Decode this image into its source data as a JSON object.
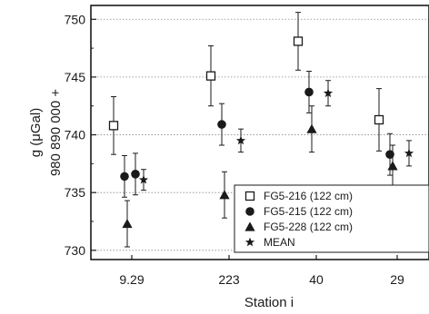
{
  "chart_data": {
    "type": "scatter",
    "title": "",
    "xlabel": "Station i",
    "ylabel_lines": [
      "g (μGal)",
      "980 890 000 +"
    ],
    "categories": [
      "9.29",
      "223",
      "40",
      "29"
    ],
    "ylim": [
      729.2,
      751.2
    ],
    "yticks": [
      730,
      735,
      740,
      745,
      750
    ],
    "grid": true,
    "legend_position": "lower-right",
    "series": [
      {
        "name": "FG5-216 (122 cm)",
        "marker": "square-open",
        "values": [
          740.8,
          745.1,
          748.1,
          741.3
        ],
        "errors": [
          2.5,
          2.6,
          2.5,
          2.7
        ]
      },
      {
        "name": "FG5-215 (122 cm)",
        "marker": "circle-filled",
        "values": [
          736.4,
          740.9,
          743.7,
          738.3
        ],
        "errors": [
          1.8,
          1.8,
          1.8,
          1.8
        ]
      },
      {
        "name": "FG5-228 (122 cm)",
        "marker": "triangle-filled",
        "values": [
          732.3,
          734.8,
          740.5,
          737.3
        ],
        "errors": [
          2.0,
          2.0,
          2.0,
          1.8
        ]
      },
      {
        "name": "MEAN",
        "marker": "star",
        "values": [
          736.1,
          739.5,
          743.6,
          738.4
        ],
        "errors": [
          0.9,
          1.0,
          1.1,
          1.1
        ]
      }
    ],
    "extra_points": [
      {
        "category": "9.29",
        "marker": "circle-filled",
        "value": 736.6,
        "error": 1.8
      }
    ]
  }
}
